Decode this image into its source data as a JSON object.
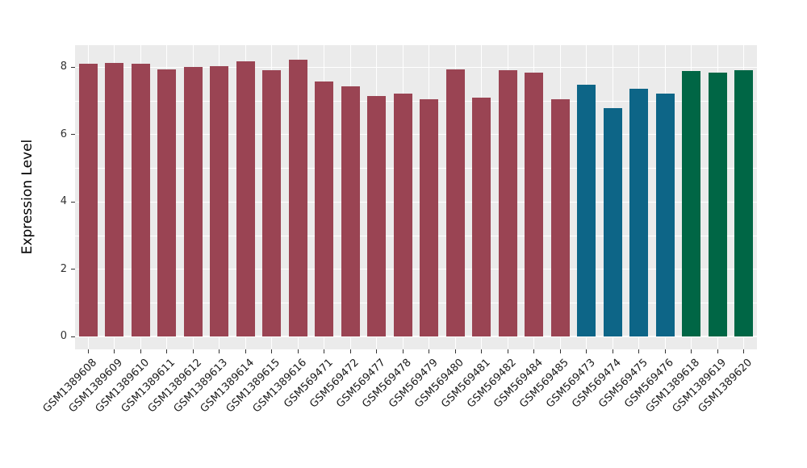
{
  "chart_data": {
    "type": "bar",
    "title": "",
    "xlabel": "",
    "ylabel": "Expression Level",
    "ylim": [
      -0.38,
      8.66
    ],
    "legend_position": "none",
    "grid": "on",
    "panel_background": "#EBEBEB",
    "grid_color": "#FFFFFF",
    "axis_text_color": "#333333",
    "ytick_values": [
      0,
      2,
      4,
      6,
      8
    ],
    "ytick_labels": [
      "0",
      "2",
      "4",
      "6",
      "8"
    ],
    "yminor_values": [
      1,
      3,
      5,
      7
    ],
    "categories": [
      "GSM1389608",
      "GSM1389609",
      "GSM1389610",
      "GSM1389611",
      "GSM1389612",
      "GSM1389613",
      "GSM1389614",
      "GSM1389615",
      "GSM1389616",
      "GSM569471",
      "GSM569472",
      "GSM569477",
      "GSM569478",
      "GSM569479",
      "GSM569480",
      "GSM569481",
      "GSM569482",
      "GSM569484",
      "GSM569485",
      "GSM569473",
      "GSM569474",
      "GSM569475",
      "GSM569476",
      "GSM1389618",
      "GSM1389619",
      "GSM1389620"
    ],
    "values": [
      8.1,
      8.13,
      8.11,
      7.93,
      8.02,
      8.04,
      8.18,
      7.91,
      8.22,
      7.57,
      7.44,
      7.15,
      7.23,
      7.04,
      7.94,
      7.09,
      7.91,
      7.85,
      7.04,
      7.48,
      6.79,
      7.36,
      7.23,
      7.88,
      7.83,
      7.91
    ],
    "groups": [
      "group1",
      "group1",
      "group1",
      "group1",
      "group1",
      "group1",
      "group1",
      "group1",
      "group1",
      "group1",
      "group1",
      "group1",
      "group1",
      "group1",
      "group1",
      "group1",
      "group1",
      "group1",
      "group1",
      "group2",
      "group2",
      "group2",
      "group2",
      "group3",
      "group3",
      "group3"
    ],
    "group_colors": {
      "group1": "#9A4453",
      "group2": "#0D6587",
      "group3": "#006645"
    }
  }
}
